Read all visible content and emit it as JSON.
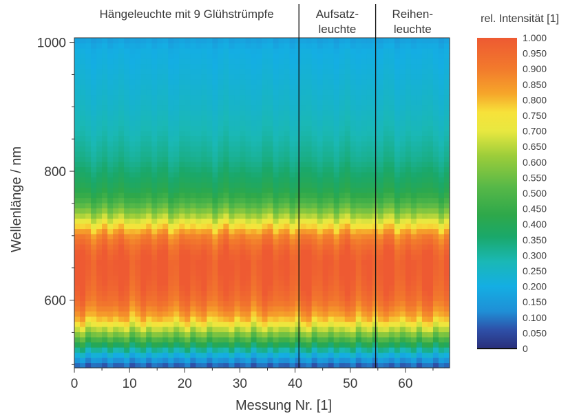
{
  "chart_data": {
    "type": "heatmap",
    "title": "",
    "xlabel": "Messung Nr. [1]",
    "ylabel": "Wellenlänge / nm",
    "xlim": [
      0,
      68
    ],
    "ylim": [
      495,
      1007
    ],
    "x_ticks": [
      0,
      10,
      20,
      30,
      40,
      50,
      60
    ],
    "y_ticks": [
      600,
      800,
      1000
    ],
    "segments": [
      {
        "label_lines": [
          "Hängeleuchte mit 9 Glühstrümpfe"
        ],
        "x_start": 0,
        "x_end": 40.7
      },
      {
        "label_lines": [
          "Aufsatz-",
          "leuchte"
        ],
        "x_start": 40.7,
        "x_end": 54.6
      },
      {
        "label_lines": [
          "Reihen-",
          "leuchte"
        ],
        "x_start": 54.6,
        "x_end": 68
      }
    ],
    "separators_x": [
      40.7,
      54.6
    ],
    "spectrum_profile": {
      "wavelength_nm": [
        495,
        505,
        515,
        525,
        535,
        545,
        555,
        565,
        575,
        585,
        600,
        620,
        640,
        660,
        680,
        700,
        710,
        720,
        735,
        750,
        760,
        770,
        790,
        820,
        860,
        900,
        950,
        990,
        1007
      ],
      "rel_intensity": [
        0.06,
        0.12,
        0.21,
        0.32,
        0.44,
        0.55,
        0.65,
        0.75,
        0.82,
        0.87,
        0.93,
        0.97,
        0.99,
        1.0,
        0.96,
        0.88,
        0.8,
        0.72,
        0.6,
        0.5,
        0.45,
        0.41,
        0.37,
        0.32,
        0.28,
        0.25,
        0.22,
        0.2,
        0.16
      ]
    },
    "colorbar": {
      "label": "rel. Intensität [1]",
      "tick_labels": [
        "1.000",
        "0.950",
        "0.900",
        "0.850",
        "0.800",
        "0.750",
        "0.700",
        "0.650",
        "0.600",
        "0.550",
        "0.500",
        "0.450",
        "0.400",
        "0.350",
        "0.300",
        "0.250",
        "0.200",
        "0.150",
        "0.100",
        "0.050",
        "0"
      ],
      "colors": [
        {
          "v": 0.0,
          "c": "#2a2f7a"
        },
        {
          "v": 0.06,
          "c": "#2e50a8"
        },
        {
          "v": 0.12,
          "c": "#1f8fd6"
        },
        {
          "v": 0.2,
          "c": "#14aee3"
        },
        {
          "v": 0.28,
          "c": "#1ab8b5"
        },
        {
          "v": 0.36,
          "c": "#1aa86a"
        },
        {
          "v": 0.43,
          "c": "#2ea84a"
        },
        {
          "v": 0.52,
          "c": "#57b848"
        },
        {
          "v": 0.62,
          "c": "#9ccd3a"
        },
        {
          "v": 0.7,
          "c": "#e8e840"
        },
        {
          "v": 0.76,
          "c": "#f7e23a"
        },
        {
          "v": 0.82,
          "c": "#f6a62a"
        },
        {
          "v": 0.9,
          "c": "#f27a2c"
        },
        {
          "v": 1.0,
          "c": "#ee5a32"
        }
      ]
    }
  }
}
